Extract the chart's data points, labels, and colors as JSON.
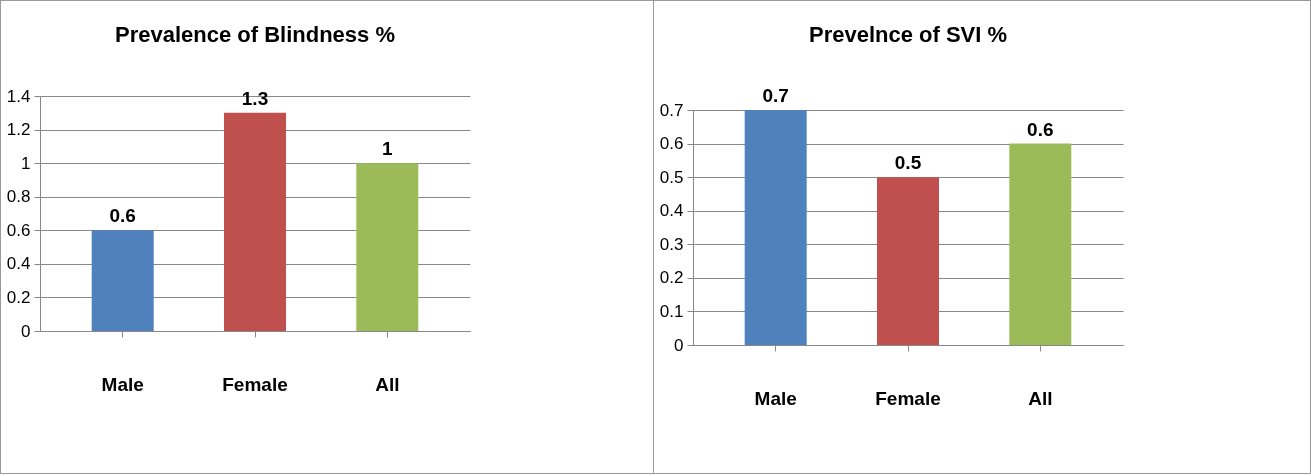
{
  "chart_data": [
    {
      "type": "bar",
      "title": "Prevalence of Blindness %",
      "categories": [
        "Male",
        "Female",
        "All"
      ],
      "values": [
        0.6,
        1.3,
        1
      ],
      "colors": [
        "#4f81bd",
        "#c0504d",
        "#9bbb59"
      ],
      "ylim": [
        0,
        1.4
      ],
      "yticks": [
        0,
        0.2,
        0.4,
        0.6,
        0.8,
        1,
        1.2,
        1.4
      ],
      "grid": "y",
      "data_labels": true
    },
    {
      "type": "bar",
      "title": "Prevelnce of SVI %",
      "categories": [
        "Male",
        "Female",
        "All"
      ],
      "values": [
        0.7,
        0.5,
        0.6
      ],
      "colors": [
        "#4f81bd",
        "#c0504d",
        "#9bbb59"
      ],
      "ylim": [
        0,
        0.7
      ],
      "yticks": [
        0,
        0.1,
        0.2,
        0.3,
        0.4,
        0.5,
        0.6,
        0.7
      ],
      "grid": "y",
      "data_labels": true
    }
  ]
}
